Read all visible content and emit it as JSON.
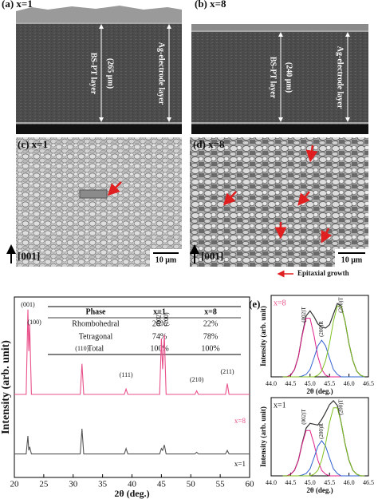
{
  "panels": [
    {
      "label": "(a) x=1",
      "layer": "BS-PT layer",
      "thickness": "(265 μm)",
      "electrode": "Ag-electrode layer"
    },
    {
      "label": "(b) x=8",
      "layer": "BS-PT layer",
      "thickness": "(240 μm)",
      "electrode": "Ag-electrode layer"
    },
    {
      "label": "(c) x=1",
      "direction": "[001]",
      "scale": "10 μm"
    },
    {
      "label": "(d) x=8",
      "direction": "[001]",
      "scale": "10 μm"
    }
  ],
  "legend": "Epitaxial growth",
  "panel_e": "(e)",
  "table": {
    "header": [
      "Phase",
      "x=1",
      "x=8"
    ],
    "rows": [
      [
        "Rhombohedral",
        "26%",
        "22%"
      ],
      [
        "Tetragonal",
        "74%",
        "78%"
      ],
      [
        "Total",
        "100%",
        "100%"
      ]
    ]
  },
  "chart_data": [
    {
      "type": "line",
      "x_label": "2θ (deg.)",
      "y_label": "Intensity (arb. unit)",
      "xlim": [
        20,
        60
      ],
      "ylim": [
        0,
        100
      ],
      "xticks": [
        20,
        25,
        30,
        35,
        40,
        45,
        50,
        55,
        60
      ],
      "annotations": [
        "(001)",
        "(100)",
        "(110)",
        "(111)",
        "(002)",
        "(200)",
        "(210)",
        "(211)"
      ],
      "x": [
        20,
        22.0,
        22.3,
        22.45,
        22.6,
        22.9,
        31.2,
        31.5,
        31.8,
        38.7,
        39.0,
        39.3,
        44.7,
        45.0,
        45.2,
        45.5,
        45.8,
        50.7,
        51.0,
        51.3,
        55.9,
        56.2,
        56.5,
        60
      ],
      "series": [
        {
          "name": "x=8",
          "color": "#e8508a",
          "values": [
            46,
            46,
            93,
            70,
            85,
            46,
            46,
            63,
            46,
            46,
            49,
            46,
            46,
            77,
            60,
            79,
            46,
            46,
            48,
            46,
            46,
            52,
            46,
            46
          ]
        },
        {
          "name": "x=1",
          "color": "#555555",
          "values": [
            13,
            13,
            23,
            15,
            17,
            13,
            13,
            27,
            13,
            13,
            16,
            13,
            13,
            16,
            15,
            18,
            13,
            13,
            14,
            13,
            13,
            15,
            13,
            13
          ]
        }
      ]
    },
    {
      "type": "line",
      "label": "x=8",
      "label_color": "#e8508a",
      "x_label": "2θ (deg.)",
      "y_label": "Intensity (arb. unit)",
      "xlim": [
        44,
        46.5
      ],
      "ylim": [
        0,
        100
      ],
      "xticks": [
        {
          "value": 44,
          "label": "44.0"
        },
        {
          "value": 44.5,
          "label": "44.5"
        },
        {
          "value": 45,
          "label": "45.0"
        },
        {
          "value": 45.5,
          "label": "45.5"
        },
        {
          "value": 46,
          "label": "46.0"
        },
        {
          "value": 46.5,
          "label": "46.5"
        }
      ],
      "x": [
        44.3,
        44.4,
        44.5,
        44.6,
        44.7,
        44.8,
        44.9,
        45.0,
        45.1,
        45.2,
        45.3,
        45.4,
        45.5,
        45.6,
        45.7,
        45.8,
        45.9,
        46.0,
        46.1,
        46.2,
        46.3,
        46.4
      ],
      "color": "#333333",
      "values": [
        0,
        0,
        2,
        9,
        25,
        52,
        75,
        81,
        74,
        65,
        61,
        60,
        64,
        77,
        90,
        87,
        68,
        41,
        20,
        7,
        2,
        0
      ],
      "series": [
        {
          "name": "(002)T",
          "color": "#e0208a",
          "values": [
            0,
            0,
            2,
            9,
            25,
            51,
            72,
            72,
            51,
            25,
            9,
            2,
            0,
            0,
            0,
            0,
            0,
            0,
            0,
            0,
            0,
            0
          ]
        },
        {
          "name": "(200)R",
          "color": "#3060d0",
          "values": [
            0,
            0,
            0,
            0,
            0,
            1,
            3,
            9,
            23,
            38,
            45,
            38,
            23,
            9,
            3,
            0,
            0,
            0,
            0,
            0,
            0,
            0
          ]
        },
        {
          "name": "(200)T",
          "color": "#80c020",
          "values": [
            0,
            0,
            0,
            0,
            0,
            0,
            0,
            0,
            0,
            2,
            7,
            20,
            41,
            68,
            87,
            87,
            68,
            41,
            20,
            7,
            2,
            0
          ]
        }
      ]
    },
    {
      "type": "line",
      "label": "x=1",
      "label_color": "#111111",
      "x_label": "2θ (deg.)",
      "y_label": "Intensity (arb. unit)",
      "xlim": [
        44,
        46.5
      ],
      "ylim": [
        0,
        100
      ],
      "xticks": [
        {
          "value": 44,
          "label": "44.0"
        },
        {
          "value": 44.5,
          "label": "44.5"
        },
        {
          "value": 45,
          "label": "45.0"
        },
        {
          "value": 45.5,
          "label": "45.5"
        },
        {
          "value": 46,
          "label": "46.0"
        },
        {
          "value": 46.5,
          "label": "46.5"
        }
      ],
      "x": [
        44.3,
        44.4,
        44.5,
        44.6,
        44.7,
        44.8,
        44.9,
        45.0,
        45.1,
        45.2,
        45.3,
        45.4,
        45.5,
        45.6,
        45.7,
        45.8,
        45.9,
        46.0,
        46.1,
        46.2,
        46.3,
        46.4
      ],
      "color": "#333333",
      "values": [
        0,
        0,
        2,
        7,
        20,
        42,
        61,
        67,
        66,
        65,
        72,
        81,
        91,
        96,
        90,
        68,
        41,
        20,
        7,
        2,
        0,
        0
      ],
      "series": [
        {
          "name": "(002)T",
          "color": "#e0208a",
          "values": [
            0,
            0,
            2,
            7,
            20,
            41,
            58,
            58,
            41,
            20,
            7,
            2,
            0,
            0,
            0,
            0,
            0,
            0,
            0,
            0,
            0,
            0
          ]
        },
        {
          "name": "(200)R",
          "color": "#3060d0",
          "values": [
            0,
            0,
            0,
            0,
            0,
            1,
            3,
            9,
            23,
            38,
            45,
            38,
            23,
            9,
            3,
            0,
            0,
            0,
            0,
            0,
            0,
            0
          ]
        },
        {
          "name": "(200)T",
          "color": "#80c020",
          "values": [
            0,
            0,
            0,
            0,
            0,
            0,
            0,
            0,
            2,
            7,
            20,
            41,
            68,
            87,
            87,
            68,
            41,
            20,
            7,
            2,
            0,
            0
          ]
        }
      ]
    }
  ]
}
